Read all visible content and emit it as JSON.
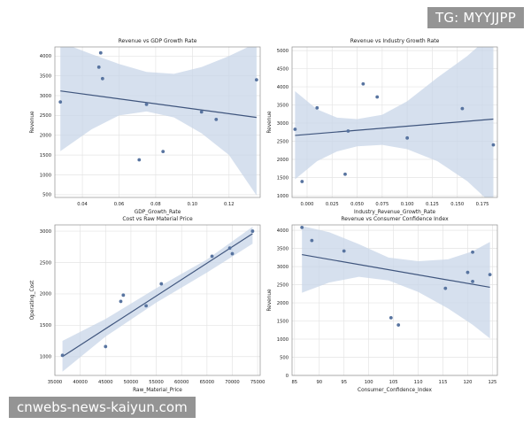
{
  "chart_data": [
    {
      "type": "scatter",
      "title": "Revenue vs GDP Growth Rate",
      "xlabel": "GDP_Growth_Rate",
      "ylabel": "Revenue",
      "xlim": [
        0.025,
        0.137
      ],
      "ylim": [
        430,
        4230
      ],
      "xticks": [
        0.04,
        0.06,
        0.08,
        0.1,
        0.12
      ],
      "xtick_labels": [
        "0.04",
        "0.06",
        "0.08",
        "0.10",
        "0.12"
      ],
      "yticks": [
        500,
        1000,
        1500,
        2000,
        2500,
        3000,
        3500,
        4000
      ],
      "ytick_labels": [
        "500",
        "1000",
        "1500",
        "2000",
        "2500",
        "3000",
        "3500",
        "4000"
      ],
      "points": [
        {
          "x": 0.028,
          "y": 2840
        },
        {
          "x": 0.049,
          "y": 3720
        },
        {
          "x": 0.05,
          "y": 4080
        },
        {
          "x": 0.051,
          "y": 3430
        },
        {
          "x": 0.071,
          "y": 1380
        },
        {
          "x": 0.075,
          "y": 2780
        },
        {
          "x": 0.084,
          "y": 1590
        },
        {
          "x": 0.105,
          "y": 2590
        },
        {
          "x": 0.113,
          "y": 2400
        },
        {
          "x": 0.135,
          "y": 3400
        }
      ],
      "fit": {
        "x": [
          0.028,
          0.135
        ],
        "y": [
          3120,
          2450
        ]
      },
      "ci_top": [
        [
          0.028,
          4350
        ],
        [
          0.045,
          4050
        ],
        [
          0.06,
          3800
        ],
        [
          0.075,
          3600
        ],
        [
          0.09,
          3550
        ],
        [
          0.105,
          3720
        ],
        [
          0.12,
          4000
        ],
        [
          0.135,
          4330
        ]
      ],
      "ci_bottom": [
        [
          0.028,
          1600
        ],
        [
          0.045,
          2150
        ],
        [
          0.06,
          2500
        ],
        [
          0.075,
          2600
        ],
        [
          0.09,
          2450
        ],
        [
          0.105,
          2050
        ],
        [
          0.12,
          1500
        ],
        [
          0.135,
          480
        ]
      ],
      "grid": true
    },
    {
      "type": "scatter",
      "title": "Revenue vs Industry Growth Rate",
      "xlabel": "Industry_Revenue_Growth_Rate",
      "ylabel": "Revenue",
      "xlim": [
        -0.015,
        0.19
      ],
      "ylim": [
        950,
        5100
      ],
      "xticks": [
        0.0,
        0.025,
        0.05,
        0.075,
        0.1,
        0.125,
        0.15,
        0.175
      ],
      "xtick_labels": [
        "0.000",
        "0.025",
        "0.050",
        "0.075",
        "0.100",
        "0.125",
        "0.150",
        "0.175"
      ],
      "yticks": [
        1000,
        1500,
        2000,
        2500,
        3000,
        3500,
        4000,
        4500,
        5000
      ],
      "ytick_labels": [
        "1000",
        "1500",
        "2000",
        "2500",
        "3000",
        "3500",
        "4000",
        "4500",
        "5000"
      ],
      "points": [
        {
          "x": -0.012,
          "y": 2830
        },
        {
          "x": -0.005,
          "y": 1390
        },
        {
          "x": 0.01,
          "y": 3420
        },
        {
          "x": 0.038,
          "y": 1590
        },
        {
          "x": 0.041,
          "y": 2780
        },
        {
          "x": 0.056,
          "y": 4080
        },
        {
          "x": 0.07,
          "y": 3720
        },
        {
          "x": 0.1,
          "y": 2590
        },
        {
          "x": 0.155,
          "y": 3400
        },
        {
          "x": 0.186,
          "y": 2400
        }
      ],
      "fit": {
        "x": [
          -0.012,
          0.186
        ],
        "y": [
          2660,
          3110
        ]
      },
      "ci_top": [
        [
          -0.012,
          3880
        ],
        [
          0.01,
          3380
        ],
        [
          0.03,
          3150
        ],
        [
          0.05,
          3110
        ],
        [
          0.075,
          3230
        ],
        [
          0.1,
          3600
        ],
        [
          0.13,
          4250
        ],
        [
          0.16,
          4850
        ],
        [
          0.186,
          5480
        ]
      ],
      "ci_bottom": [
        [
          -0.012,
          1450
        ],
        [
          0.01,
          1950
        ],
        [
          0.03,
          2220
        ],
        [
          0.05,
          2360
        ],
        [
          0.075,
          2400
        ],
        [
          0.1,
          2280
        ],
        [
          0.13,
          1950
        ],
        [
          0.16,
          1400
        ],
        [
          0.186,
          730
        ]
      ],
      "grid": true
    },
    {
      "type": "scatter",
      "title": "Cost vs Raw Material Price",
      "xlabel": "Raw_Material_Price",
      "ylabel": "Operating_Cost",
      "xlim": [
        35000,
        75500
      ],
      "ylim": [
        700,
        3100
      ],
      "xticks": [
        35000,
        40000,
        45000,
        50000,
        55000,
        60000,
        65000,
        70000,
        75000
      ],
      "xtick_labels": [
        "35000",
        "40000",
        "45000",
        "50000",
        "55000",
        "60000",
        "65000",
        "70000",
        "75000"
      ],
      "yticks": [
        1000,
        1500,
        2000,
        2500,
        3000
      ],
      "ytick_labels": [
        "1000",
        "1500",
        "2000",
        "2500",
        "3000"
      ],
      "points": [
        {
          "x": 36500,
          "y": 1020
        },
        {
          "x": 45000,
          "y": 1160
        },
        {
          "x": 48000,
          "y": 1880
        },
        {
          "x": 48500,
          "y": 1980
        },
        {
          "x": 53000,
          "y": 1810
        },
        {
          "x": 56000,
          "y": 2160
        },
        {
          "x": 66000,
          "y": 2600
        },
        {
          "x": 69500,
          "y": 2730
        },
        {
          "x": 70000,
          "y": 2640
        },
        {
          "x": 74000,
          "y": 3000
        }
      ],
      "fit": {
        "x": [
          36500,
          74000
        ],
        "y": [
          1000,
          2960
        ]
      },
      "ci_top": [
        [
          36500,
          1250
        ],
        [
          45000,
          1600
        ],
        [
          55000,
          2090
        ],
        [
          65000,
          2550
        ],
        [
          74000,
          3070
        ]
      ],
      "ci_bottom": [
        [
          36500,
          760
        ],
        [
          45000,
          1320
        ],
        [
          55000,
          1860
        ],
        [
          65000,
          2340
        ],
        [
          74000,
          2800
        ]
      ],
      "grid": true
    },
    {
      "type": "scatter",
      "title": "Revenue vs Consumer Confidence Index",
      "xlabel": "Consumer_Confidence_Index",
      "ylabel": "Revenue",
      "xlim": [
        84.5,
        126
      ],
      "ylim": [
        0,
        4150
      ],
      "xticks": [
        85,
        90,
        95,
        100,
        105,
        110,
        115,
        120,
        125
      ],
      "xtick_labels": [
        "85",
        "90",
        "95",
        "100",
        "105",
        "110",
        "115",
        "120",
        "125"
      ],
      "yticks": [
        0,
        500,
        1000,
        1500,
        2000,
        2500,
        3000,
        3500,
        4000
      ],
      "ytick_labels": [
        "0",
        "500",
        "1000",
        "1500",
        "2000",
        "2500",
        "3000",
        "3500",
        "4000"
      ],
      "points": [
        {
          "x": 86.5,
          "y": 4080
        },
        {
          "x": 88.5,
          "y": 3720
        },
        {
          "x": 95.0,
          "y": 3430
        },
        {
          "x": 104.5,
          "y": 1590
        },
        {
          "x": 106.0,
          "y": 1390
        },
        {
          "x": 115.5,
          "y": 2400
        },
        {
          "x": 120.0,
          "y": 2840
        },
        {
          "x": 121.0,
          "y": 3400
        },
        {
          "x": 121.0,
          "y": 2590
        },
        {
          "x": 124.5,
          "y": 2780
        }
      ],
      "fit": {
        "x": [
          86.5,
          124.5
        ],
        "y": [
          3330,
          2430
        ]
      },
      "ci_top": [
        [
          86.5,
          4120
        ],
        [
          92,
          3950
        ],
        [
          98,
          3620
        ],
        [
          104,
          3250
        ],
        [
          110,
          3150
        ],
        [
          116,
          3200
        ],
        [
          121,
          3420
        ],
        [
          124.5,
          3680
        ]
      ],
      "ci_bottom": [
        [
          86.5,
          2280
        ],
        [
          92,
          2560
        ],
        [
          98,
          2720
        ],
        [
          104,
          2620
        ],
        [
          110,
          2300
        ],
        [
          116,
          1850
        ],
        [
          121,
          1400
        ],
        [
          124.5,
          1020
        ]
      ],
      "grid": true
    }
  ],
  "colors": {
    "point": "#5874a0",
    "line": "#3f557d",
    "band": "#c8d5e8",
    "grid": "#e4e4e4",
    "axis": "#8f8f8f",
    "text": "#222222"
  },
  "watermarks": {
    "tag": "TG: MYYJJPP",
    "site": "cnwebs-news-kaiyun.com"
  }
}
